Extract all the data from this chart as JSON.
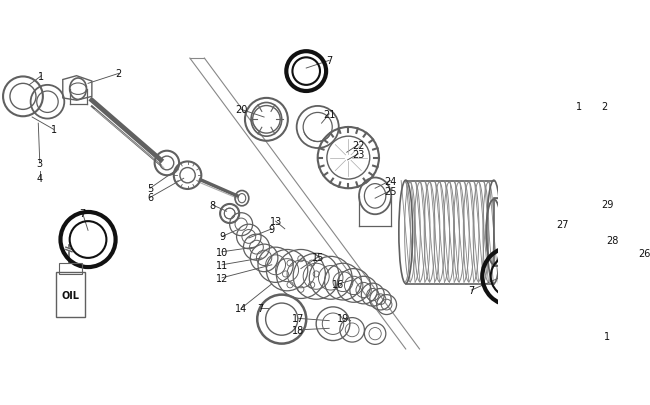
{
  "bg_color": "#ffffff",
  "lc": "#606060",
  "dc": "#111111",
  "fig_w": 6.5,
  "fig_h": 4.06,
  "dpi": 100
}
